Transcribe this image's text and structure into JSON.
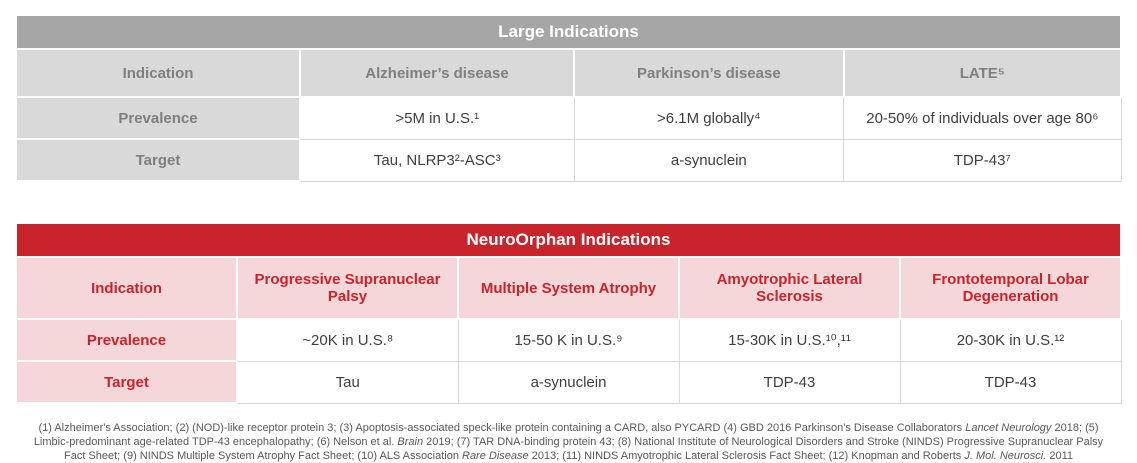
{
  "colors": {
    "gray_title": "#a6a6a6",
    "gray_cell": "#d9d9d9",
    "gray_text": "#7f7f7f",
    "red": "#c9242b",
    "pink": "#f6d7d9",
    "border": "#d9d9d9",
    "body_text": "#3f3f3f",
    "footnote_text": "#595959"
  },
  "large_table": {
    "title": "Large Indications",
    "columns": [
      "Indication",
      "Alzheimer’s disease",
      "Parkinson’s disease",
      "LATE⁵"
    ],
    "rows": [
      {
        "label": "Prevalence",
        "values": [
          ">5M in U.S.¹",
          ">6.1M globally⁴",
          "20-50% of individuals over age 80⁶"
        ]
      },
      {
        "label": "Target",
        "values": [
          "Tau, NLRP3²-ASC³",
          "a-synuclein",
          "TDP-43⁷"
        ]
      }
    ]
  },
  "neuroorphan_table": {
    "title": "NeuroOrphan Indications",
    "columns": [
      "Indication",
      "Progressive Supranuclear Palsy",
      "Multiple System Atrophy",
      "Amyotrophic Lateral Sclerosis",
      "Frontotemporal Lobar Degeneration"
    ],
    "rows": [
      {
        "label": "Prevalence",
        "values": [
          "~20K in U.S.⁸",
          "15-50 K in U.S.⁹",
          "15-30K in U.S.¹⁰,¹¹",
          "20-30K in U.S.¹²"
        ]
      },
      {
        "label": "Target",
        "values": [
          "Tau",
          "a-synuclein",
          "TDP-43",
          "TDP-43"
        ]
      }
    ]
  },
  "footnote": {
    "runs": [
      {
        "t": "(1) Alzheimer's Association; (2) (NOD)-like receptor protein 3; (3) Apoptosis-associated speck-like protein containing a CARD, also PYCARD (4) GBD 2016 Parkinson's Disease Collaborators ",
        "i": false
      },
      {
        "t": "Lancet Neurology",
        "i": true
      },
      {
        "t": " 2018; (5) Limbic-predominant age-related TDP-43 encephalopathy; (6) Nelson et al. ",
        "i": false
      },
      {
        "t": "Brain",
        "i": true
      },
      {
        "t": " 2019; (7) TAR DNA-binding protein 43; (8) National Institute of Neurological Disorders and Stroke (NINDS) Progressive Supranuclear Palsy Fact Sheet; (9) NINDS Multiple System Atrophy Fact Sheet; (10) ALS Association ",
        "i": false
      },
      {
        "t": "Rare Disease",
        "i": true
      },
      {
        "t": " 2013; (11) NINDS Amyotrophic Lateral Sclerosis Fact Sheet; (12) Knopman and Roberts ",
        "i": false
      },
      {
        "t": "J. Mol. Neurosci.",
        "i": true
      },
      {
        "t": " 2011",
        "i": false
      }
    ]
  }
}
